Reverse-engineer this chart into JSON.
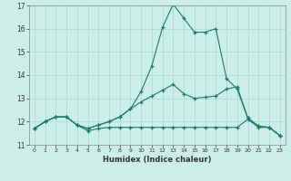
{
  "xlabel": "Humidex (Indice chaleur)",
  "xlim": [
    -0.5,
    23.5
  ],
  "ylim": [
    11,
    17
  ],
  "yticks": [
    11,
    12,
    13,
    14,
    15,
    16,
    17
  ],
  "xticks": [
    0,
    1,
    2,
    3,
    4,
    5,
    6,
    7,
    8,
    9,
    10,
    11,
    12,
    13,
    14,
    15,
    16,
    17,
    18,
    19,
    20,
    21,
    22,
    23
  ],
  "background_color": "#cceee8",
  "grid_color": "#aaddd6",
  "line_color": "#1a7a6e",
  "series_min": [
    11.7,
    12.0,
    12.2,
    12.2,
    11.85,
    11.6,
    11.7,
    11.75,
    11.75,
    11.75,
    11.75,
    11.75,
    11.75,
    11.75,
    11.75,
    11.75,
    11.75,
    11.75,
    11.75,
    11.75,
    12.1,
    11.75,
    11.75,
    11.4
  ],
  "series_mid": [
    11.7,
    12.0,
    12.2,
    12.2,
    11.85,
    11.7,
    11.85,
    12.0,
    12.2,
    12.55,
    12.85,
    13.1,
    13.35,
    13.6,
    13.2,
    13.0,
    13.05,
    13.1,
    13.4,
    13.5,
    12.15,
    11.8,
    11.75,
    11.4
  ],
  "series_max": [
    11.7,
    12.0,
    12.2,
    12.2,
    11.85,
    11.7,
    11.85,
    12.0,
    12.2,
    12.55,
    13.3,
    14.4,
    16.05,
    17.05,
    16.45,
    15.85,
    15.85,
    16.0,
    13.85,
    13.4,
    12.15,
    11.8,
    11.75,
    11.4
  ]
}
